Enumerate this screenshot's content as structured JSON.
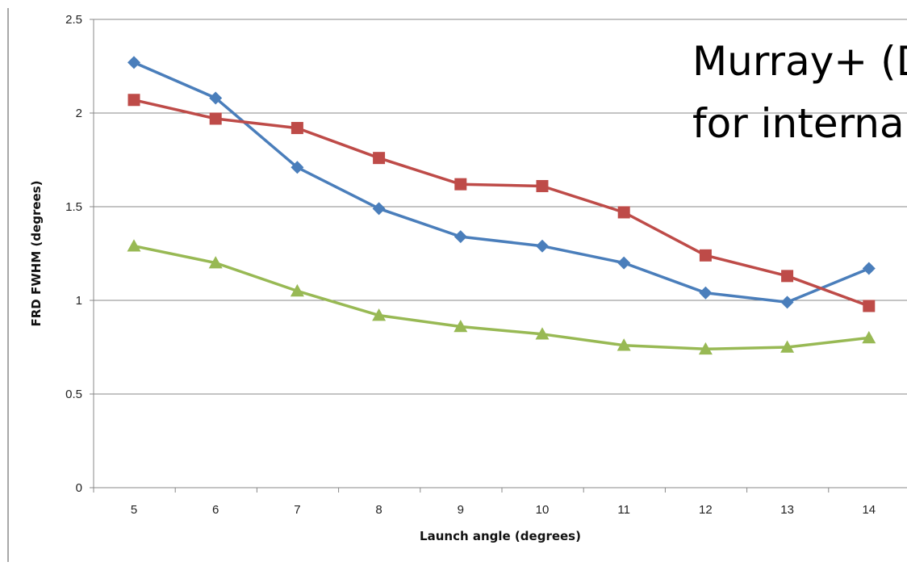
{
  "chart_data": {
    "type": "line",
    "title": "",
    "overlay_text": [
      "Murray+ (D",
      "for interna"
    ],
    "xlabel": "Launch angle (degrees)",
    "ylabel": "FRD FWHM (degrees)",
    "categories": [
      5,
      6,
      7,
      8,
      9,
      10,
      11,
      12,
      13,
      14
    ],
    "ylim": [
      0,
      2.5
    ],
    "yticks": [
      0,
      0.5,
      1,
      1.5,
      2,
      2.5
    ],
    "ytick_labels": [
      "0",
      "0.5",
      "1",
      "1.5",
      "2",
      "2.5"
    ],
    "grid": "horizontal",
    "series": [
      {
        "marker": "diamond",
        "color": "#4a7ebb",
        "values": [
          2.27,
          2.08,
          1.71,
          1.49,
          1.34,
          1.29,
          1.2,
          1.04,
          0.99,
          1.17
        ]
      },
      {
        "marker": "square",
        "color": "#be4b48",
        "values": [
          2.07,
          1.97,
          1.92,
          1.76,
          1.62,
          1.61,
          1.47,
          1.24,
          1.13,
          0.97
        ]
      },
      {
        "marker": "triangle",
        "color": "#98b954",
        "values": [
          1.29,
          1.2,
          1.05,
          0.92,
          0.86,
          0.82,
          0.76,
          0.74,
          0.75,
          0.8
        ]
      }
    ]
  }
}
